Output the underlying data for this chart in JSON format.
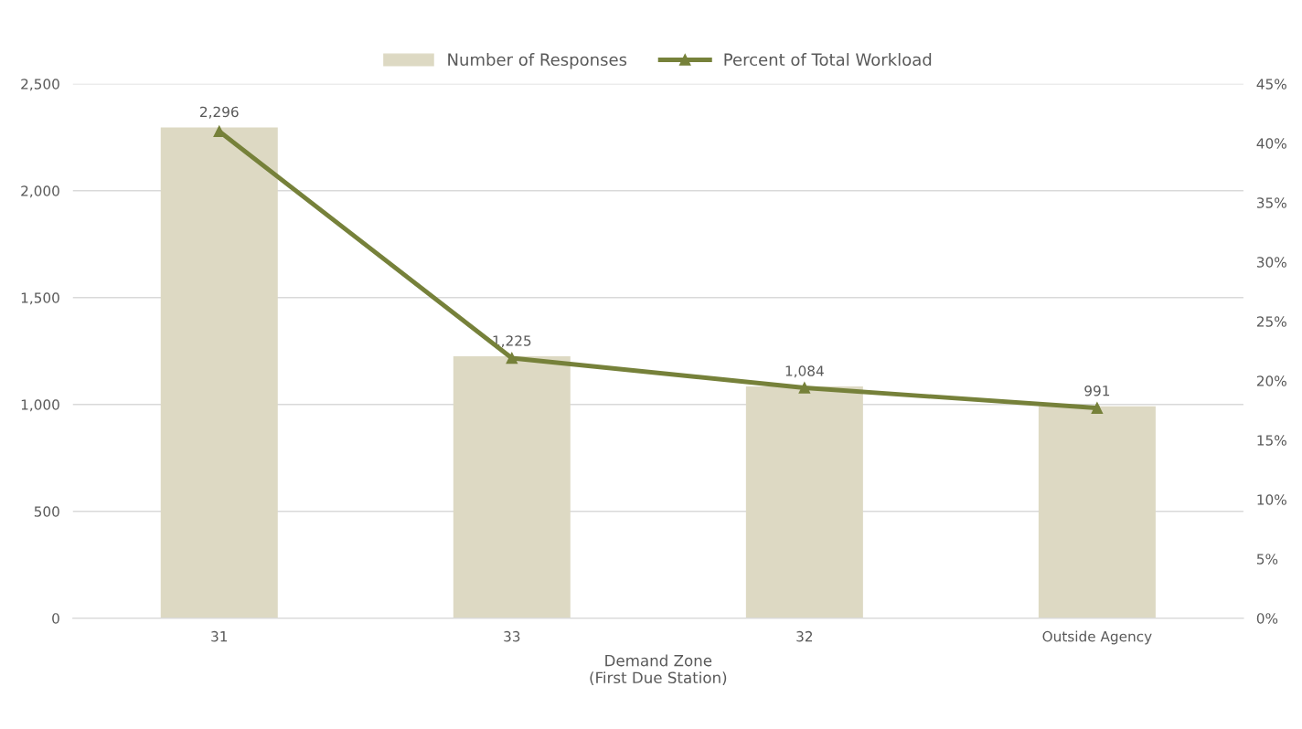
{
  "chart_data": {
    "type": "bar",
    "categories": [
      "31",
      "33",
      "32",
      "Outside Agency"
    ],
    "xlabel": "Demand Zone\n(First Due Station)",
    "series": [
      {
        "name": "Number of Responses",
        "color": "#ddd9c3",
        "values": [
          2296,
          1225,
          1084,
          991
        ],
        "value_labels": [
          "2,296",
          "1,225",
          "1,084",
          "991"
        ]
      },
      {
        "name": "Percent of Total Workload",
        "type": "line",
        "axis": "y2",
        "color": "#76813a",
        "marker": "triangle",
        "line_style": "solid",
        "values": [
          41.0,
          21.9,
          19.4,
          17.7
        ]
      }
    ],
    "ylim": [
      0,
      2500
    ],
    "yticks": [
      0,
      {
        "value": 500,
        "label": "500"
      },
      {
        "value": 1000,
        "label": "1,000"
      },
      {
        "value": 1500,
        "label": "1,500"
      },
      {
        "value": 2000,
        "label": "2,000"
      },
      {
        "value": 2500,
        "label": "2,500"
      }
    ],
    "y2lim": [
      0,
      45
    ],
    "y2ticks": [
      {
        "value": 0,
        "label": "0%"
      },
      {
        "value": 5,
        "label": "5%"
      },
      {
        "value": 10,
        "label": "10%"
      },
      {
        "value": 15,
        "label": "15%"
      },
      {
        "value": 20,
        "label": "20%"
      },
      {
        "value": 25,
        "label": "25%"
      },
      {
        "value": 30,
        "label": "30%"
      },
      {
        "value": 35,
        "label": "35%"
      },
      {
        "value": 40,
        "label": "40%"
      },
      {
        "value": 45,
        "label": "45%"
      }
    ],
    "grid": "y",
    "legend": "top"
  }
}
